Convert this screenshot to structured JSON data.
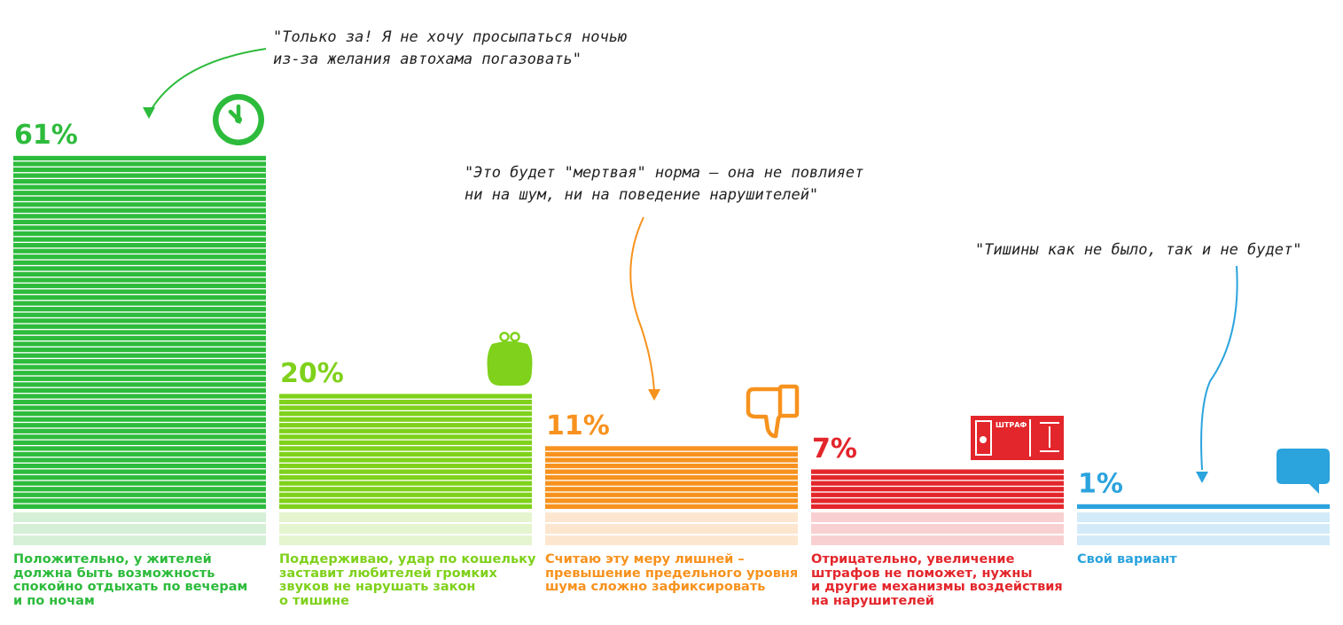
{
  "chart_data": {
    "type": "bar",
    "title": "",
    "xlabel": "",
    "ylabel": "",
    "ylim": [
      0,
      61
    ],
    "grid": false,
    "categories": [
      "Положительно, у жителей\nдолжна быть возможность\nспокойно отдыхать по вечерам\nи по ночам",
      "Поддерживаю, удар по кошельку\nзаставит любителей громких\nзвуков не нарушать закон\nо тишине",
      "Считаю эту меру лишней –\nпревышение предельного уровня\nшума сложно зафиксировать",
      "Отрицательно, увеличение\nштрафов не поможет, нужны\nи другие механизмы воздействия\nна нарушителей",
      "Свой вариант"
    ],
    "values": [
      61,
      20,
      11,
      7,
      1
    ],
    "value_labels": [
      "61%",
      "20%",
      "11%",
      "7%",
      "1%"
    ],
    "colors": [
      "#2dbb3c",
      "#7fd11b",
      "#f7921e",
      "#e3262b",
      "#2ba3dd"
    ],
    "light_colors": [
      "#d5f0d6",
      "#e5f5cf",
      "#fde6d0",
      "#f9d0d1",
      "#d3ebf8"
    ],
    "icons": [
      "clock-icon",
      "purse-icon",
      "thumbs-down-icon",
      "fine-ticket-icon",
      "speech-bubble-icon"
    ],
    "icon_text": {
      "fine_ticket": "ШТРАФ"
    },
    "annotations": [
      {
        "text": [
          "\"Только за! Я не хочу просыпаться ночью",
          "из-за желания автохама погазовать\""
        ],
        "target": 0,
        "color": "#2dbb3c"
      },
      {
        "text": [
          "\"Это будет \"мертвая\" норма – она не повлияет",
          "ни на шум, ни на поведение нарушителей\""
        ],
        "target": 2,
        "color": "#f7921e"
      },
      {
        "text": [
          "\"Тишины как не было, так и не будет\""
        ],
        "target": 4,
        "color": "#2ba3dd"
      }
    ]
  }
}
